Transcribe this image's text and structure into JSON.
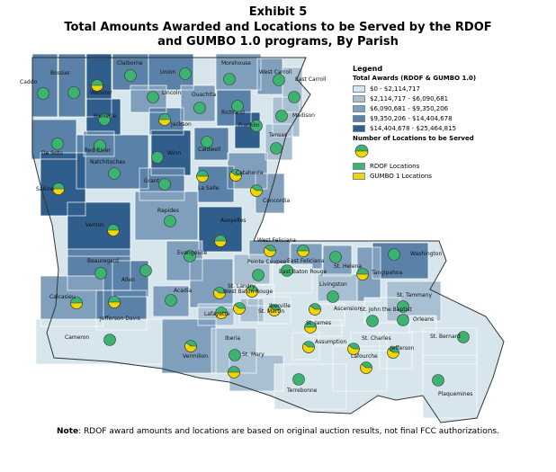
{
  "title": {
    "line1": "Exhibit 5",
    "line2": "Total Amounts Awarded and Locations to be Served by the RDOF and GUMBO 1.0 programs, By Parish"
  },
  "legend": {
    "heading": "Legend",
    "awards_heading": "Total Awards (RDOF & GUMBO 1.0)",
    "classes": [
      {
        "label": "$0 - $2,114,717",
        "color": "#d7e5ec"
      },
      {
        "label": "$2,114,717 - $6,090,681",
        "color": "#a9bfd2"
      },
      {
        "label": "$6,090,681 - $9,350,206",
        "color": "#7f9fbc"
      },
      {
        "label": "$9,350,206 - $14,404,678",
        "color": "#5a81a8"
      },
      {
        "label": "$14,404,678 - $25,464,815",
        "color": "#2f5d8c"
      }
    ],
    "locations_heading": "Number of Locations to be Served",
    "rdof_label": "RDOF Locations",
    "gumbo_label": "GUMBO 1 Locations",
    "rdof_color": "#3cb371",
    "gumbo_color": "#f2d600"
  },
  "parishes": [
    {
      "name": "Caddo",
      "cls": 3,
      "gumbo": 0.0
    },
    {
      "name": "Bossier",
      "cls": 3,
      "gumbo": 0.0
    },
    {
      "name": "Webster",
      "cls": 4,
      "gumbo": 0.5
    },
    {
      "name": "Claiborne",
      "cls": 3,
      "gumbo": 0.0
    },
    {
      "name": "Union",
      "cls": 3,
      "gumbo": 0.0
    },
    {
      "name": "Morehouse",
      "cls": 2,
      "gumbo": 0.0
    },
    {
      "name": "West Carroll",
      "cls": 2,
      "gumbo": 0.0
    },
    {
      "name": "East Carroll",
      "cls": 1,
      "gumbo": 0.0
    },
    {
      "name": "Lincoln",
      "cls": 2,
      "gumbo": 0.0
    },
    {
      "name": "Ouachita",
      "cls": 2,
      "gumbo": 0.0
    },
    {
      "name": "Richland",
      "cls": 3,
      "gumbo": 0.0
    },
    {
      "name": "Madison",
      "cls": 1,
      "gumbo": 0.0
    },
    {
      "name": "Bienville",
      "cls": 4,
      "gumbo": 0.0
    },
    {
      "name": "Jackson",
      "cls": 3,
      "gumbo": 0.5
    },
    {
      "name": "Franklin",
      "cls": 4,
      "gumbo": 0.0
    },
    {
      "name": "Tensas",
      "cls": 1,
      "gumbo": 0.0
    },
    {
      "name": "De Soto",
      "cls": 3,
      "gumbo": 0.0
    },
    {
      "name": "Red River",
      "cls": 3,
      "gumbo": 0.0
    },
    {
      "name": "Natchitoches",
      "cls": 3,
      "gumbo": 0.0
    },
    {
      "name": "Winn",
      "cls": 4,
      "gumbo": 0.0
    },
    {
      "name": "Caldwell",
      "cls": 3,
      "gumbo": 0.0
    },
    {
      "name": "Catahoula",
      "cls": 2,
      "gumbo": 0.6
    },
    {
      "name": "La Salle",
      "cls": 3,
      "gumbo": 0.5
    },
    {
      "name": "Concordia",
      "cls": 2,
      "gumbo": 0.6
    },
    {
      "name": "Grant",
      "cls": 3,
      "gumbo": 0.0
    },
    {
      "name": "Sabine",
      "cls": 4,
      "gumbo": 0.5
    },
    {
      "name": "Vernon",
      "cls": 4,
      "gumbo": 0.5
    },
    {
      "name": "Rapides",
      "cls": 2,
      "gumbo": 0.0
    },
    {
      "name": "Avoyelles",
      "cls": 4,
      "gumbo": 0.5
    },
    {
      "name": "Beauregard",
      "cls": 3,
      "gumbo": 0.0
    },
    {
      "name": "Allen",
      "cls": 3,
      "gumbo": 0.0
    },
    {
      "name": "Evangeline",
      "cls": 2,
      "gumbo": 0.0
    },
    {
      "name": "West Feliciana",
      "cls": 2,
      "gumbo": 0.6
    },
    {
      "name": "East Feliciana",
      "cls": 2,
      "gumbo": 0.5
    },
    {
      "name": "St. Helena",
      "cls": 2,
      "gumbo": 0.0
    },
    {
      "name": "Washington",
      "cls": 3,
      "gumbo": 0.0
    },
    {
      "name": "Pointe Coupee",
      "cls": 1,
      "gumbo": 0.0
    },
    {
      "name": "East Baton Rouge",
      "cls": 0,
      "gumbo": 0.0
    },
    {
      "name": "Livingston",
      "cls": 1,
      "gumbo": 0.0
    },
    {
      "name": "Tangipahoa",
      "cls": 2,
      "gumbo": 0.5
    },
    {
      "name": "Calcasieu",
      "cls": 2,
      "gumbo": 0.5
    },
    {
      "name": "Jefferson Davis",
      "cls": 3,
      "gumbo": 0.5
    },
    {
      "name": "Acadia",
      "cls": 2,
      "gumbo": 0.0
    },
    {
      "name": "St. Landry",
      "cls": 2,
      "gumbo": 0.6
    },
    {
      "name": "West Baton Rouge",
      "cls": 0,
      "gumbo": 0.6
    },
    {
      "name": "Iberville",
      "cls": 0,
      "gumbo": 0.6
    },
    {
      "name": "Lafayette",
      "cls": 1,
      "gumbo": 0.5
    },
    {
      "name": "St. Martin",
      "cls": 1,
      "gumbo": 0.6
    },
    {
      "name": "Ascension",
      "cls": 0,
      "gumbo": 0.6
    },
    {
      "name": "St. James",
      "cls": 0,
      "gumbo": 0.5
    },
    {
      "name": "St. John the Baptist",
      "cls": 0,
      "gumbo": 0.0
    },
    {
      "name": "St. Tammany",
      "cls": 1,
      "gumbo": 0.0
    },
    {
      "name": "Orleans",
      "cls": 0,
      "gumbo": 0.0
    },
    {
      "name": "St. Charles",
      "cls": 0,
      "gumbo": 0.6
    },
    {
      "name": "Jefferson",
      "cls": 0,
      "gumbo": 0.6
    },
    {
      "name": "St. Bernard",
      "cls": 0,
      "gumbo": 0.0
    },
    {
      "name": "Cameron",
      "cls": 0,
      "gumbo": 0.0
    },
    {
      "name": "Vermilion",
      "cls": 2,
      "gumbo": 0.6
    },
    {
      "name": "Iberia",
      "cls": 1,
      "gumbo": 0.0
    },
    {
      "name": "St. Mary",
      "cls": 1,
      "gumbo": 0.5
    },
    {
      "name": "Assumption",
      "cls": 0,
      "gumbo": 0.6
    },
    {
      "name": "Lafourche",
      "cls": 0,
      "gumbo": 0.6
    },
    {
      "name": "Terrebonne",
      "cls": 0,
      "gumbo": 0.0
    },
    {
      "name": "Plaquemines",
      "cls": 0,
      "gumbo": 0.0
    }
  ],
  "note": {
    "label": "Note",
    "text": ": RDOF award amounts and locations are based on original auction results, not final FCC authorizations."
  }
}
